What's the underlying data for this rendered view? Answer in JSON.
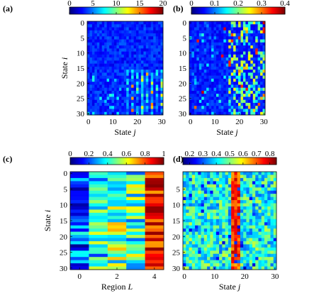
{
  "chart_data": [
    {
      "type": "heatmap",
      "panel": "(a)",
      "colorbar": {
        "ticks": [
          "0",
          "5",
          "10",
          "15",
          "20"
        ],
        "range": [
          0,
          20
        ]
      },
      "xlabel": "State j",
      "ylabel": "State i",
      "xticks": [
        "0",
        "10",
        "20",
        "30"
      ],
      "yticks": [
        "0",
        "5",
        "10",
        "15",
        "20",
        "25",
        "30"
      ],
      "rows": 31,
      "cols": 31,
      "seed": 11,
      "pattern": "a"
    },
    {
      "type": "heatmap",
      "panel": "(b)",
      "colorbar": {
        "ticks": [
          "0",
          "0.1",
          "0.2",
          "0.3",
          "0.4"
        ],
        "range": [
          0,
          0.4
        ]
      },
      "xlabel": "State j",
      "ylabel": "",
      "xticks": [
        "0",
        "10",
        "20",
        "30"
      ],
      "yticks": [
        "0",
        "5",
        "10",
        "15",
        "20",
        "25",
        "30"
      ],
      "rows": 31,
      "cols": 31,
      "seed": 23,
      "pattern": "b"
    },
    {
      "type": "heatmap",
      "panel": "(c)",
      "colorbar": {
        "ticks": [
          "0",
          "0.2",
          "0.4",
          "0.6",
          "0.8",
          "1"
        ],
        "range": [
          0,
          1
        ]
      },
      "xlabel": "Region L",
      "ylabel": "State i",
      "xticks": [
        "0",
        "2",
        "4"
      ],
      "yticks": [
        "0",
        "5",
        "10",
        "15",
        "20",
        "25",
        "30"
      ],
      "rows": 31,
      "cols": 5,
      "seed": 37,
      "pattern": "c"
    },
    {
      "type": "heatmap",
      "panel": "(d)",
      "colorbar": {
        "ticks": [
          "0.2",
          "0.3",
          "0.4",
          "0.5",
          "0.6",
          "0.7",
          "0.8"
        ],
        "range": [
          0.15,
          0.85
        ]
      },
      "xlabel": "State j",
      "ylabel": "",
      "xticks": [
        "0",
        "10",
        "20",
        "30"
      ],
      "yticks": [
        "5",
        "10",
        "15",
        "20",
        "25",
        "30"
      ],
      "rows": 31,
      "cols": 31,
      "seed": 53,
      "pattern": "d"
    }
  ]
}
